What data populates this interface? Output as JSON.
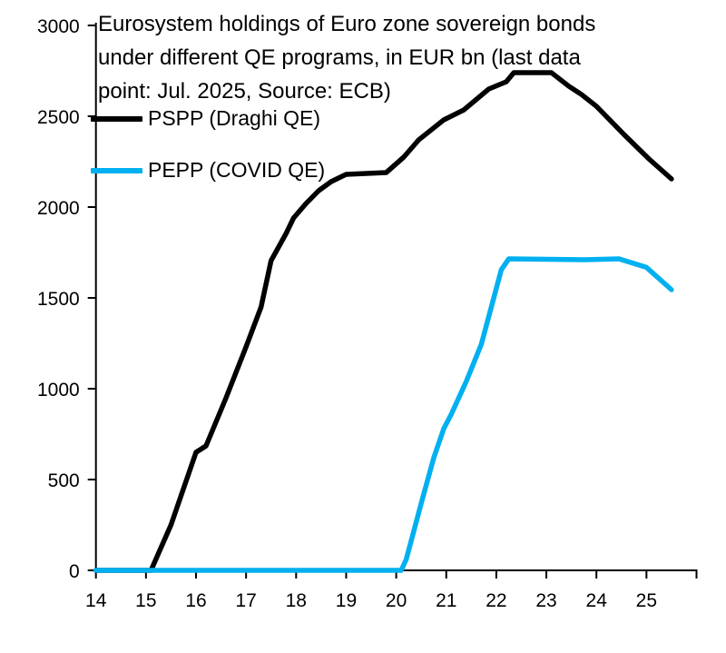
{
  "chart_data": {
    "type": "line",
    "title": "Eurosystem holdings of Euro zone sovereign bonds under different QE programs, in EUR bn (last data point: Jul. 2025, Source: ECB)",
    "title_lines": [
      "Eurosystem holdings of Euro zone sovereign bonds",
      "under different QE programs, in EUR bn (last data",
      "point: Jul. 2025, Source: ECB)"
    ],
    "xlabel": "",
    "ylabel": "",
    "x_unit": "year (2014 - 2025, ticks show last two digits)",
    "x_range": [
      14,
      26
    ],
    "x_ticks": [
      14,
      15,
      16,
      17,
      18,
      19,
      20,
      21,
      22,
      23,
      24,
      25
    ],
    "ylim": [
      0,
      3000
    ],
    "y_ticks": [
      0,
      500,
      1000,
      1500,
      2000,
      2500,
      3000
    ],
    "grid": false,
    "legend_position": "top-left",
    "axis_color": "#000000",
    "series": [
      {
        "name": "PSPP (Draghi QE)",
        "color": "#000000",
        "points": [
          [
            14.0,
            0
          ],
          [
            15.1,
            0
          ],
          [
            15.5,
            250
          ],
          [
            16.0,
            650
          ],
          [
            16.2,
            685
          ],
          [
            16.6,
            950
          ],
          [
            17.0,
            1230
          ],
          [
            17.3,
            1450
          ],
          [
            17.5,
            1705
          ],
          [
            17.8,
            1855
          ],
          [
            17.95,
            1940
          ],
          [
            18.2,
            2020
          ],
          [
            18.45,
            2090
          ],
          [
            18.7,
            2140
          ],
          [
            19.0,
            2180
          ],
          [
            19.8,
            2190
          ],
          [
            20.15,
            2275
          ],
          [
            20.45,
            2370
          ],
          [
            20.95,
            2480
          ],
          [
            21.35,
            2535
          ],
          [
            21.85,
            2650
          ],
          [
            22.2,
            2690
          ],
          [
            22.35,
            2740
          ],
          [
            23.1,
            2740
          ],
          [
            23.45,
            2665
          ],
          [
            23.7,
            2620
          ],
          [
            24.0,
            2555
          ],
          [
            24.55,
            2400
          ],
          [
            25.05,
            2265
          ],
          [
            25.5,
            2155
          ]
        ]
      },
      {
        "name": "PEPP (COVID QE)",
        "color": "#00B0F0",
        "points": [
          [
            14.0,
            0
          ],
          [
            20.1,
            0
          ],
          [
            20.2,
            60
          ],
          [
            20.5,
            370
          ],
          [
            20.75,
            620
          ],
          [
            20.95,
            780
          ],
          [
            21.1,
            860
          ],
          [
            21.4,
            1040
          ],
          [
            21.7,
            1245
          ],
          [
            21.95,
            1500
          ],
          [
            22.1,
            1655
          ],
          [
            22.25,
            1715
          ],
          [
            23.75,
            1710
          ],
          [
            24.45,
            1715
          ],
          [
            25.0,
            1668
          ],
          [
            25.5,
            1545
          ]
        ]
      }
    ]
  },
  "legend": {
    "items": [
      {
        "label": "PSPP (Draghi QE)",
        "color": "#000000"
      },
      {
        "label": "PEPP (COVID QE)",
        "color": "#00B0F0"
      }
    ]
  }
}
